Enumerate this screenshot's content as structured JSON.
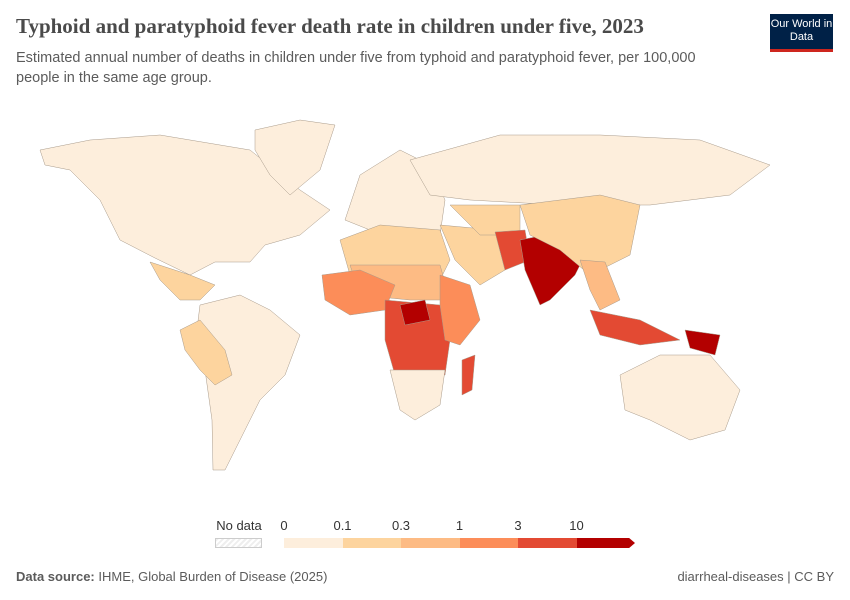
{
  "header": {
    "title": "Typhoid and paratyphoid fever death rate in children under five, 2023",
    "subtitle": "Estimated annual number of deaths in children under five from typhoid and paratyphoid fever, per 100,000 people in the same age group.",
    "logo": "Our World in Data"
  },
  "legend": {
    "no_data_label": "No data",
    "ticks": [
      "0",
      "0.1",
      "0.3",
      "1",
      "3",
      "10"
    ],
    "colors": [
      "#fdeedc",
      "#fdd49e",
      "#fdbb84",
      "#fc8d59",
      "#e34a33",
      "#b30000"
    ]
  },
  "map_regions": [
    {
      "name": "North America",
      "bin": 0
    },
    {
      "name": "Greenland",
      "bin": 0
    },
    {
      "name": "Central America",
      "bin": 1
    },
    {
      "name": "South America",
      "bin": 0
    },
    {
      "name": "Peru-Bolivia",
      "bin": 1
    },
    {
      "name": "Europe",
      "bin": 0
    },
    {
      "name": "Russia",
      "bin": 0
    },
    {
      "name": "North Africa",
      "bin": 1
    },
    {
      "name": "Sahel",
      "bin": 2
    },
    {
      "name": "West Africa",
      "bin": 3
    },
    {
      "name": "Central Africa",
      "bin": 4
    },
    {
      "name": "Central African hotspot",
      "bin": 5
    },
    {
      "name": "East Africa",
      "bin": 3
    },
    {
      "name": "Southern Africa",
      "bin": 0
    },
    {
      "name": "Madagascar",
      "bin": 4
    },
    {
      "name": "Middle East",
      "bin": 1
    },
    {
      "name": "Central Asia",
      "bin": 1
    },
    {
      "name": "Pakistan-Afghanistan",
      "bin": 4
    },
    {
      "name": "India",
      "bin": 5
    },
    {
      "name": "China",
      "bin": 1
    },
    {
      "name": "Southeast Asia",
      "bin": 2
    },
    {
      "name": "Indonesia-Philippines",
      "bin": 4
    },
    {
      "name": "Papua New Guinea",
      "bin": 5
    },
    {
      "name": "Australia",
      "bin": 0
    }
  ],
  "footer": {
    "source_label": "Data source:",
    "source": "IHME, Global Burden of Disease (2025)",
    "right": "diarrheal-diseases | CC BY"
  }
}
